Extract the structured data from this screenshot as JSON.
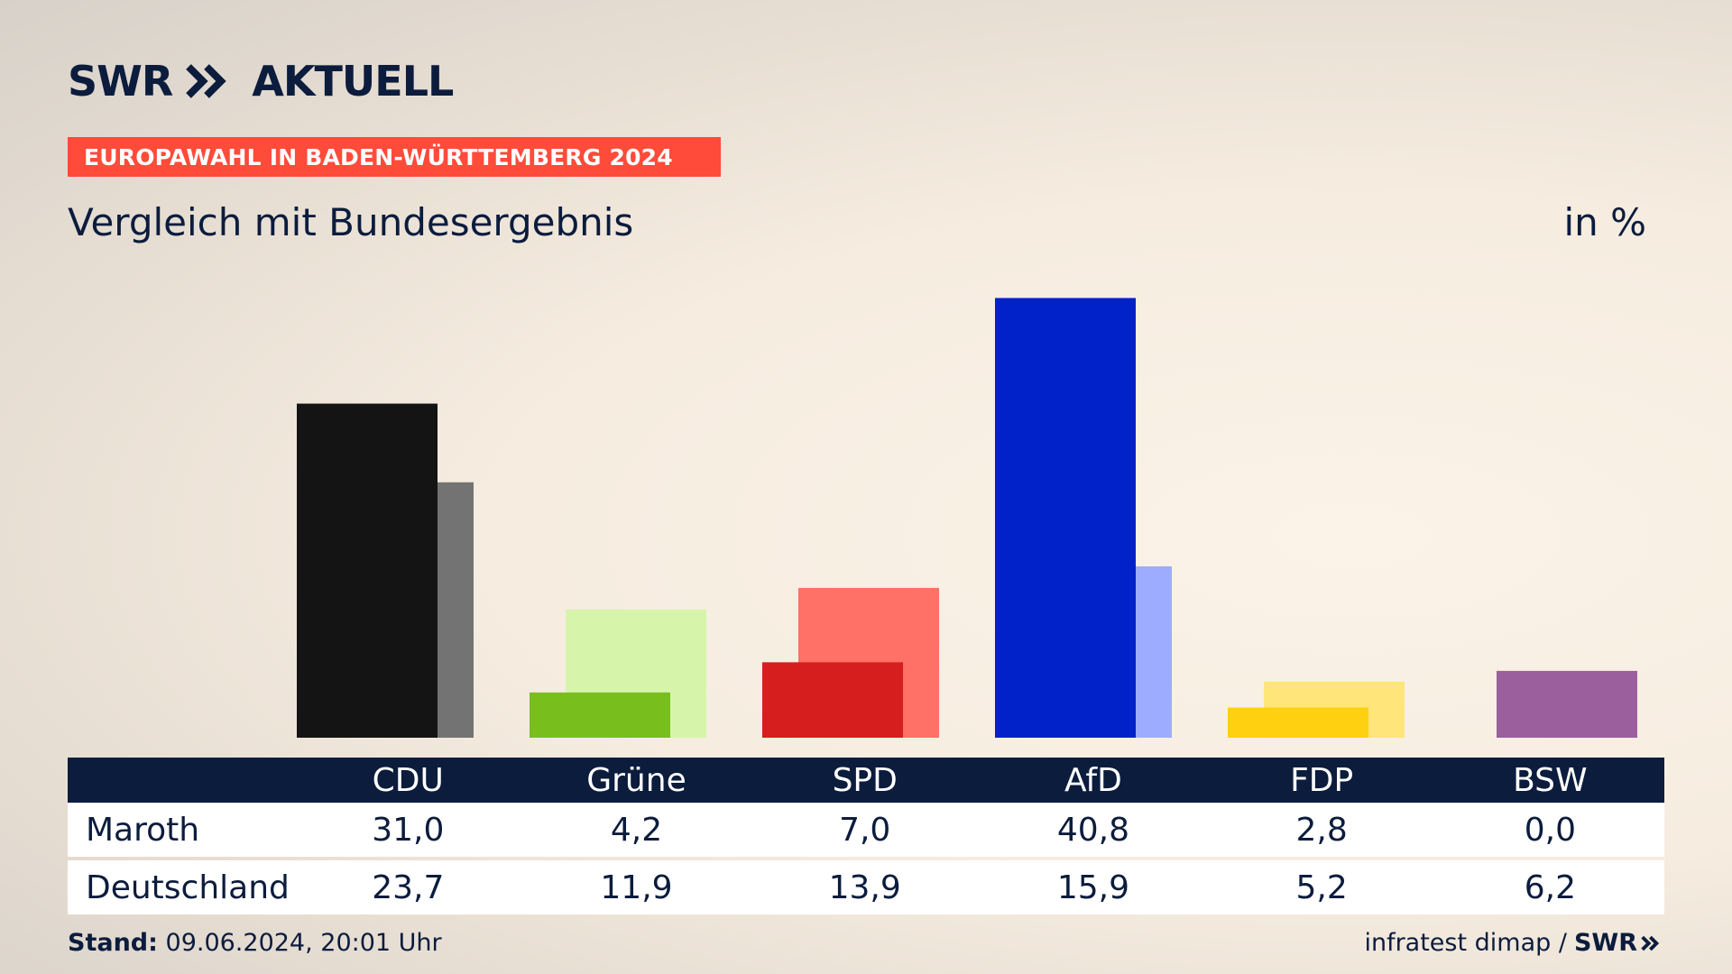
{
  "header": {
    "brand": "SWR",
    "brand_suffix": "AKTUELL",
    "banner": "EUROPAWAHL IN BADEN-WÜRTTEMBERG 2024",
    "subtitle": "Vergleich mit Bundesergebnis",
    "unit": "in %"
  },
  "chart_data": {
    "type": "bar",
    "categories": [
      "CDU",
      "Grüne",
      "SPD",
      "AfD",
      "FDP",
      "BSW"
    ],
    "series": [
      {
        "name": "Maroth",
        "values": [
          31.0,
          4.2,
          7.0,
          40.8,
          2.8,
          0.0
        ]
      },
      {
        "name": "Deutschland",
        "values": [
          23.7,
          11.9,
          13.9,
          15.9,
          5.2,
          6.2
        ]
      }
    ],
    "ylim": [
      0,
      45
    ],
    "colors": {
      "local": [
        "#141414",
        "#78bf1e",
        "#d61e1e",
        "#0022c8",
        "#ffd00f",
        "#9c5f9e"
      ],
      "national": [
        "#737373",
        "#d6f5ab",
        "#ff7066",
        "#9eacff",
        "#ffe57a",
        "#9c5f9e"
      ]
    }
  },
  "table": {
    "rows": [
      {
        "label": "Maroth",
        "values": [
          "31,0",
          "4,2",
          "7,0",
          "40,8",
          "2,8",
          "0,0"
        ]
      },
      {
        "label": "Deutschland",
        "values": [
          "23,7",
          "11,9",
          "13,9",
          "15,9",
          "5,2",
          "6,2"
        ]
      }
    ]
  },
  "footer": {
    "stand_label": "Stand:",
    "stand_value": "09.06.2024, 20:01 Uhr",
    "source": "infratest dimap /",
    "source_brand": "SWR"
  }
}
